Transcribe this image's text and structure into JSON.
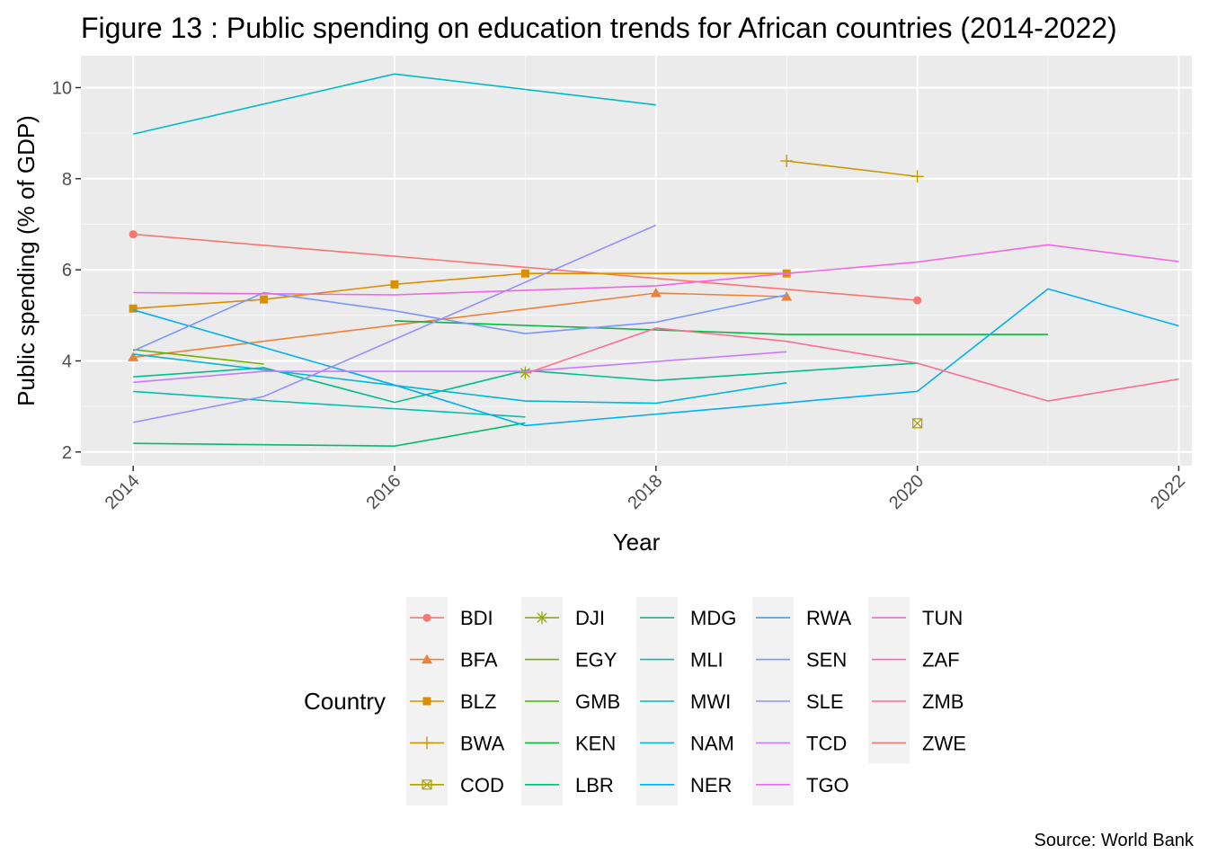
{
  "chart_data": {
    "type": "line",
    "title": "Figure 13 : Public spending on education trends for African countries (2014-2022)",
    "xlabel": "Year",
    "ylabel": "Public spending (% of GDP)",
    "caption": "Source: World Bank",
    "legend_title": "Country",
    "legend_placement": "bottom",
    "xlim": [
      2013.6,
      2022.1
    ],
    "ylim": [
      1.7,
      10.7
    ],
    "xticks": [
      {
        "value": 2014,
        "label": "2014"
      },
      {
        "value": 2016,
        "label": "2016"
      },
      {
        "value": 2018,
        "label": "2018"
      },
      {
        "value": 2020,
        "label": "2020"
      },
      {
        "value": 2022,
        "label": "2022"
      }
    ],
    "yticks": [
      {
        "value": 2,
        "label": "2"
      },
      {
        "value": 4,
        "label": "4"
      },
      {
        "value": 6,
        "label": "6"
      },
      {
        "value": 8,
        "label": "8"
      },
      {
        "value": 10,
        "label": "10"
      }
    ],
    "grid": true,
    "series": [
      {
        "name": "BDI",
        "color": "#F8766D",
        "marker": "circle",
        "points": [
          [
            2014,
            6.78
          ],
          [
            2020,
            5.33
          ]
        ]
      },
      {
        "name": "BFA",
        "color": "#EC8239",
        "marker": "triangle",
        "points": [
          [
            2014,
            4.08
          ],
          [
            2018,
            5.49
          ],
          [
            2019,
            5.41
          ]
        ]
      },
      {
        "name": "BLZ",
        "color": "#DB8E00",
        "marker": "square",
        "points": [
          [
            2014,
            5.15
          ],
          [
            2015,
            5.35
          ],
          [
            2016,
            5.68
          ],
          [
            2017,
            5.92
          ],
          [
            2019,
            5.92
          ]
        ]
      },
      {
        "name": "BWA",
        "color": "#C79800",
        "marker": "plus",
        "points": [
          [
            2019,
            8.39
          ],
          [
            2020,
            8.05
          ]
        ]
      },
      {
        "name": "COD",
        "color": "#AFA100",
        "marker": "boxx",
        "points": [
          [
            2020,
            2.63
          ]
        ]
      },
      {
        "name": "DJI",
        "color": "#93AA00",
        "marker": "star",
        "points": [
          [
            2017,
            3.74
          ]
        ]
      },
      {
        "name": "EGY",
        "color": "#72B000",
        "marker": "none",
        "points": [
          [
            2014,
            4.25
          ],
          [
            2015,
            3.93
          ]
        ]
      },
      {
        "name": "GMB",
        "color": "#3DB700",
        "marker": "none",
        "points": []
      },
      {
        "name": "KEN",
        "color": "#00BA38",
        "marker": "none",
        "points": [
          [
            2016,
            4.88
          ],
          [
            2018,
            4.68
          ],
          [
            2019,
            4.58
          ],
          [
            2021,
            4.58
          ]
        ]
      },
      {
        "name": "LBR",
        "color": "#00BE6C",
        "marker": "none",
        "points": [
          [
            2014,
            2.19
          ],
          [
            2016,
            2.13
          ],
          [
            2017,
            2.64
          ]
        ]
      },
      {
        "name": "MDG",
        "color": "#00BF8D",
        "marker": "none",
        "points": [
          [
            2014,
            3.65
          ],
          [
            2015,
            3.85
          ],
          [
            2016,
            3.09
          ],
          [
            2017,
            3.79
          ],
          [
            2018,
            3.57
          ],
          [
            2020,
            3.95
          ]
        ]
      },
      {
        "name": "MLI",
        "color": "#00C0AB",
        "marker": "none",
        "points": [
          [
            2014,
            3.33
          ],
          [
            2015,
            3.13
          ],
          [
            2017,
            2.77
          ]
        ]
      },
      {
        "name": "MWI",
        "color": "#00BDC4",
        "marker": "none",
        "points": [
          [
            2014,
            8.98
          ],
          [
            2016,
            10.3
          ],
          [
            2018,
            9.62
          ]
        ]
      },
      {
        "name": "NAM",
        "color": "#00B8DA",
        "marker": "none",
        "points": [
          [
            2014,
            4.15
          ],
          [
            2017,
            3.12
          ],
          [
            2018,
            3.07
          ],
          [
            2019,
            3.52
          ]
        ]
      },
      {
        "name": "NER",
        "color": "#00B0F6",
        "marker": "none",
        "points": [
          [
            2014,
            5.12
          ],
          [
            2016,
            3.47
          ],
          [
            2017,
            2.58
          ],
          [
            2020,
            3.33
          ],
          [
            2021,
            5.58
          ],
          [
            2022,
            4.77
          ]
        ]
      },
      {
        "name": "RWA",
        "color": "#35A2FF",
        "marker": "none",
        "points": []
      },
      {
        "name": "SEN",
        "color": "#7997FF",
        "marker": "none",
        "points": [
          [
            2014,
            4.22
          ],
          [
            2015,
            5.5
          ],
          [
            2016,
            5.1
          ],
          [
            2017,
            4.6
          ],
          [
            2018,
            4.85
          ],
          [
            2019,
            5.45
          ]
        ]
      },
      {
        "name": "SLE",
        "color": "#9590FF",
        "marker": "none",
        "points": [
          [
            2014,
            2.65
          ],
          [
            2015,
            3.22
          ],
          [
            2018,
            6.98
          ]
        ]
      },
      {
        "name": "TCD",
        "color": "#C77CFF",
        "marker": "none",
        "points": [
          [
            2014,
            3.53
          ],
          [
            2015,
            3.77
          ],
          [
            2017,
            3.77
          ],
          [
            2019,
            4.2
          ]
        ]
      },
      {
        "name": "TGO",
        "color": "#E76BF3",
        "marker": "none",
        "points": []
      },
      {
        "name": "TUN",
        "color": "#F564E3",
        "marker": "none",
        "points": [
          [
            2014,
            5.5
          ],
          [
            2016,
            5.45
          ],
          [
            2018,
            5.65
          ],
          [
            2019,
            5.92
          ],
          [
            2020,
            6.17
          ],
          [
            2021,
            6.55
          ],
          [
            2022,
            6.18
          ]
        ]
      },
      {
        "name": "ZAF",
        "color": "#FF62BC",
        "marker": "none",
        "points": []
      },
      {
        "name": "ZMB",
        "color": "#FF6C91",
        "marker": "none",
        "points": [
          [
            2017,
            3.72
          ],
          [
            2018,
            4.72
          ],
          [
            2019,
            4.43
          ],
          [
            2020,
            3.95
          ],
          [
            2021,
            3.12
          ],
          [
            2022,
            3.6
          ]
        ]
      },
      {
        "name": "ZWE",
        "color": "#F8766D",
        "marker": "none",
        "points": []
      }
    ]
  }
}
